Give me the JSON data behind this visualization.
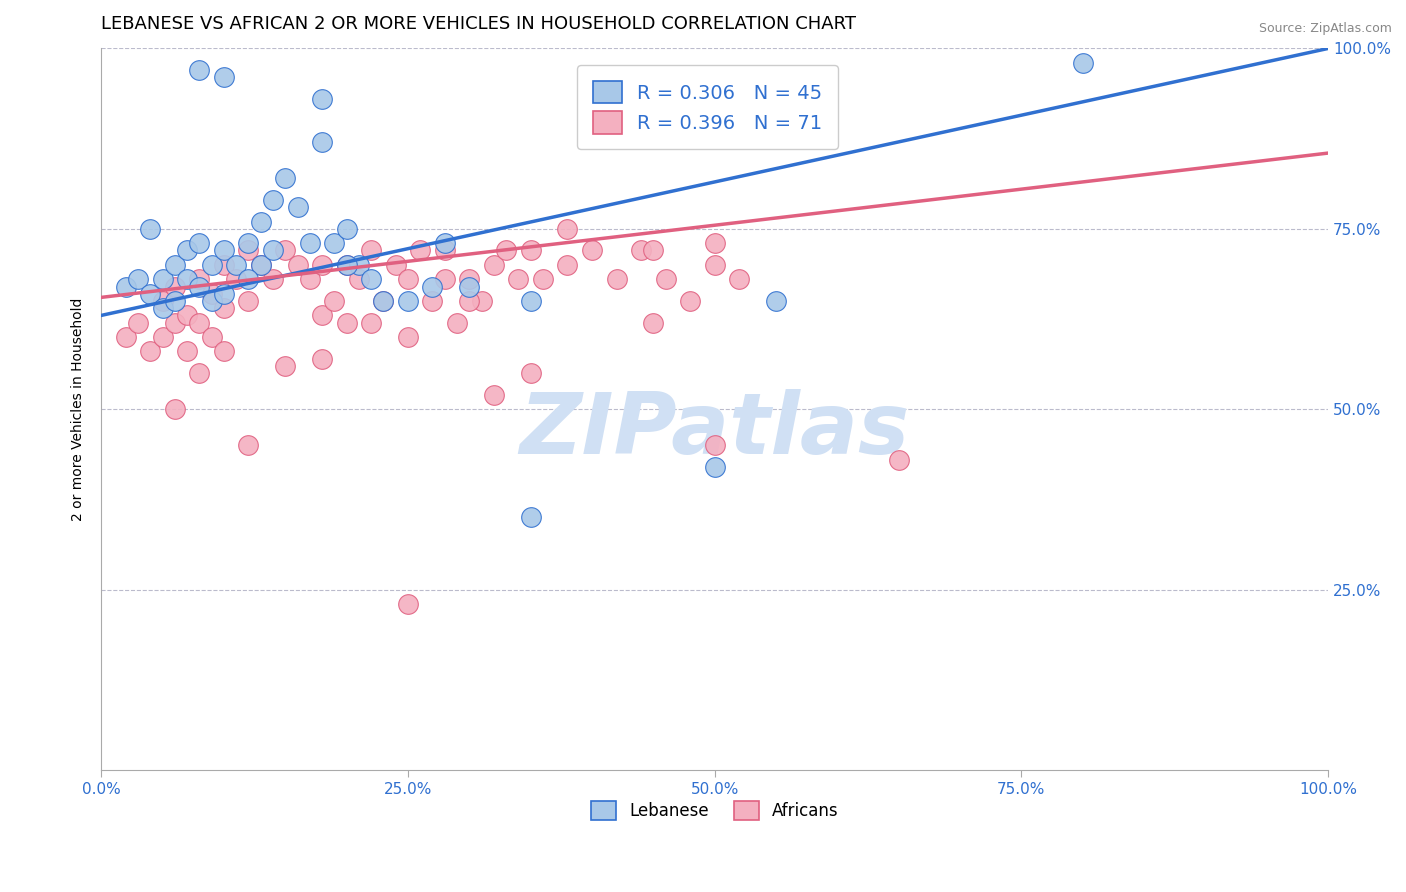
{
  "title": "LEBANESE VS AFRICAN 2 OR MORE VEHICLES IN HOUSEHOLD CORRELATION CHART",
  "source_text": "Source: ZipAtlas.com",
  "ylabel": "2 or more Vehicles in Household",
  "xlim": [
    0,
    1.0
  ],
  "ylim": [
    0,
    1.0
  ],
  "xtick_labels": [
    "0.0%",
    "25.0%",
    "50.0%",
    "75.0%",
    "100.0%"
  ],
  "xtick_vals": [
    0.0,
    0.25,
    0.5,
    0.75,
    1.0
  ],
  "ytick_vals": [
    0.25,
    0.5,
    0.75,
    1.0
  ],
  "right_ytick_labels": [
    "25.0%",
    "50.0%",
    "75.0%",
    "100.0%"
  ],
  "right_ytick_vals": [
    0.25,
    0.5,
    0.75,
    1.0
  ],
  "blue_R": 0.306,
  "blue_N": 45,
  "pink_R": 0.396,
  "pink_N": 71,
  "blue_color": "#a8c8e8",
  "pink_color": "#f4b0c0",
  "blue_line_color": "#3070d0",
  "pink_line_color": "#e06080",
  "legend_label_blue": "Lebanese",
  "legend_label_pink": "Africans",
  "watermark": "ZIPatlas",
  "watermark_color": "#d0e0f4",
  "title_fontsize": 13,
  "axis_label_fontsize": 10,
  "tick_fontsize": 11,
  "blue_line_y_intercept": 0.63,
  "blue_line_slope": 0.37,
  "pink_line_y_intercept": 0.655,
  "pink_line_slope": 0.2,
  "blue_scatter_x": [
    0.02,
    0.03,
    0.04,
    0.04,
    0.05,
    0.05,
    0.06,
    0.06,
    0.07,
    0.07,
    0.08,
    0.08,
    0.09,
    0.09,
    0.1,
    0.1,
    0.11,
    0.12,
    0.13,
    0.13,
    0.14,
    0.15,
    0.16,
    0.17,
    0.18,
    0.19,
    0.2,
    0.21,
    0.22,
    0.23,
    0.25,
    0.27,
    0.3,
    0.18,
    0.14,
    0.08,
    0.1,
    0.12,
    0.2,
    0.28,
    0.35,
    0.5,
    0.55,
    0.8,
    0.35
  ],
  "blue_scatter_y": [
    0.67,
    0.68,
    0.66,
    0.75,
    0.68,
    0.64,
    0.7,
    0.65,
    0.72,
    0.68,
    0.73,
    0.67,
    0.7,
    0.65,
    0.72,
    0.66,
    0.7,
    0.73,
    0.76,
    0.7,
    0.79,
    0.82,
    0.78,
    0.73,
    0.87,
    0.73,
    0.75,
    0.7,
    0.68,
    0.65,
    0.65,
    0.67,
    0.67,
    0.93,
    0.72,
    0.97,
    0.96,
    0.68,
    0.7,
    0.73,
    0.35,
    0.42,
    0.65,
    0.98,
    0.65
  ],
  "pink_scatter_x": [
    0.02,
    0.03,
    0.04,
    0.05,
    0.05,
    0.06,
    0.06,
    0.07,
    0.07,
    0.08,
    0.08,
    0.09,
    0.09,
    0.1,
    0.1,
    0.11,
    0.12,
    0.12,
    0.13,
    0.14,
    0.15,
    0.16,
    0.17,
    0.18,
    0.18,
    0.19,
    0.2,
    0.21,
    0.22,
    0.23,
    0.24,
    0.25,
    0.26,
    0.27,
    0.28,
    0.29,
    0.3,
    0.31,
    0.32,
    0.33,
    0.34,
    0.35,
    0.36,
    0.38,
    0.4,
    0.42,
    0.44,
    0.46,
    0.48,
    0.5,
    0.52,
    0.15,
    0.1,
    0.2,
    0.25,
    0.3,
    0.08,
    0.06,
    0.35,
    0.45,
    0.65,
    0.45,
    0.5,
    0.38,
    0.28,
    0.5,
    0.22,
    0.32,
    0.12,
    0.18,
    0.25
  ],
  "pink_scatter_y": [
    0.6,
    0.62,
    0.58,
    0.65,
    0.6,
    0.67,
    0.62,
    0.63,
    0.58,
    0.68,
    0.62,
    0.66,
    0.6,
    0.7,
    0.64,
    0.68,
    0.72,
    0.65,
    0.7,
    0.68,
    0.72,
    0.7,
    0.68,
    0.7,
    0.63,
    0.65,
    0.7,
    0.68,
    0.72,
    0.65,
    0.7,
    0.68,
    0.72,
    0.65,
    0.68,
    0.62,
    0.68,
    0.65,
    0.7,
    0.72,
    0.68,
    0.72,
    0.68,
    0.7,
    0.72,
    0.68,
    0.72,
    0.68,
    0.65,
    0.7,
    0.68,
    0.56,
    0.58,
    0.62,
    0.6,
    0.65,
    0.55,
    0.5,
    0.55,
    0.62,
    0.43,
    0.72,
    0.73,
    0.75,
    0.72,
    0.45,
    0.62,
    0.52,
    0.45,
    0.57,
    0.23
  ]
}
